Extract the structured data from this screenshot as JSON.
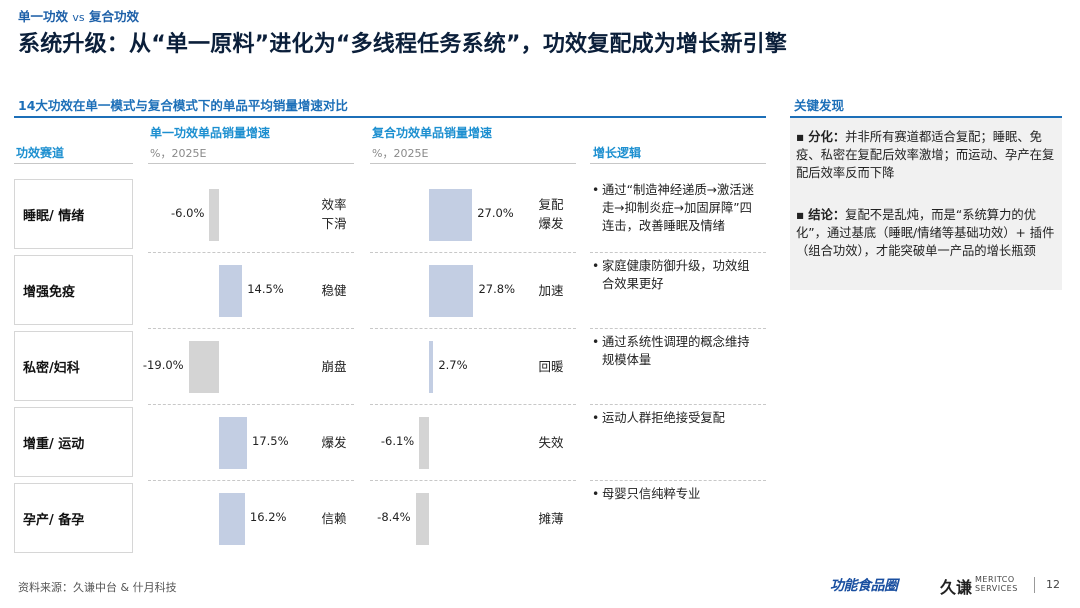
{
  "header": {
    "crumb_part1": "单一功效",
    "crumb_vs": "vs",
    "crumb_part2": "复合功效",
    "title": "系统升级：从“单一原料”进化为“多线程任务系统”，功效复配成为增长新引擎"
  },
  "chart_data": {
    "type": "bar",
    "title": "14大功效在单一模式与复合模式下的单品平均销量增速对比",
    "columns": {
      "category": "功效赛道",
      "single_title": "单一功效单品销量增速",
      "single_unit": "%，2025E",
      "combo_title": "复合功效单品销量增速",
      "combo_unit": "%，2025E",
      "logic_title": "增长逻辑"
    },
    "categories": [
      "睡眠/ 情绪",
      "增强免疫",
      "私密/妇科",
      "增重/ 运动",
      "孕产/ 备孕"
    ],
    "series": [
      {
        "name": "单一功效单品销量增速",
        "values": [
          -6.0,
          14.5,
          -19.0,
          17.5,
          16.2
        ],
        "labels": [
          "-6.0%",
          "14.5%",
          "-19.0%",
          "17.5%",
          "16.2%"
        ],
        "tags": [
          "效率下滑",
          "稳健",
          "崩盘",
          "爆发",
          "信赖"
        ]
      },
      {
        "name": "复合功效单品销量增速",
        "values": [
          27.0,
          27.8,
          2.7,
          -6.1,
          -8.4
        ],
        "labels": [
          "27.0%",
          "27.8%",
          "2.7%",
          "-6.1%",
          "-8.4%"
        ],
        "tags": [
          "复配爆发",
          "加速",
          "回暖",
          "失效",
          "摊薄"
        ]
      }
    ],
    "logic": [
      "通过“制造神经递质→激活迷走→抑制炎症→加固屏障”四连击，改善睡眠及情绪",
      "家庭健康防御升级，功效组合效果更好",
      "通过系统性调理的概念维持规模体量",
      "运动人群拒绝接受复配",
      "母婴只信纯粹专业"
    ]
  },
  "key_findings": {
    "title": "关键发现",
    "items": [
      {
        "bullet": "▪",
        "label": "分化：",
        "text": "并非所有赛道都适合复配；睡眠、免疫、私密在复配后效率激增；而运动、孕产在复配后效率反而下降"
      },
      {
        "bullet": "▪",
        "label": "结论：",
        "text": "复配不是乱炖，而是“系统算力的优化”，通过基底（睡眠/情绪等基础功效）+ 插件（组合功效），才能突破单一产品的增长瓶颈"
      }
    ]
  },
  "footer": {
    "source": "资料来源：久谦中台 & 什月科技",
    "logo_functional": "功能食品圈",
    "logo_jq": "久谦",
    "logo_meritco_1": "MERITCO",
    "logo_meritco_2": "SERVICES",
    "page": "12"
  },
  "colors": {
    "positive_bar": "#c3cee3",
    "negative_bar": "#d4d4d4",
    "accent": "#1c6fb8"
  }
}
